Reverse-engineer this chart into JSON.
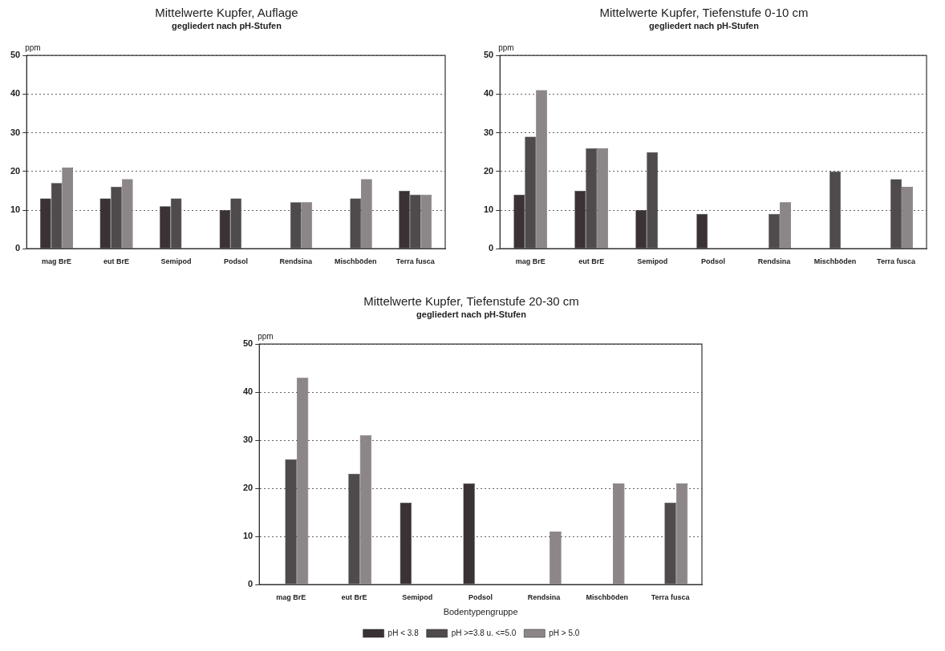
{
  "chart_data": [
    {
      "type": "bar",
      "title": "Mittelwerte Kupfer, Auflage",
      "subtitle": "gegliedert nach pH-Stufen",
      "ylabel": "ppm",
      "categories": [
        "mag BrE",
        "eut BrE",
        "Semipod",
        "Podsol",
        "Rendsina",
        "Mischböden",
        "Terra fusca"
      ],
      "series": [
        {
          "color": "#3a3234",
          "values": [
            13,
            13,
            11,
            10,
            null,
            null,
            15
          ]
        },
        {
          "color": "#4f4a4c",
          "values": [
            17,
            16,
            13,
            13,
            12,
            13,
            14
          ]
        },
        {
          "color": "#8c8688",
          "values": [
            21,
            18,
            null,
            null,
            12,
            18,
            14
          ]
        }
      ],
      "ylim": [
        0,
        50
      ],
      "yticks": [
        0,
        10,
        20,
        30,
        40,
        50
      ],
      "grid": "y",
      "legend": false
    },
    {
      "type": "bar",
      "title": "Mittelwerte Kupfer, Tiefenstufe 0-10 cm",
      "subtitle": "gegliedert nach pH-Stufen",
      "ylabel": "ppm",
      "categories": [
        "mag BrE",
        "eut BrE",
        "Semipod",
        "Podsol",
        "Rendsina",
        "Mischböden",
        "Terra fusca"
      ],
      "series": [
        {
          "color": "#3a3234",
          "values": [
            14,
            15,
            10,
            9,
            null,
            null,
            null
          ]
        },
        {
          "color": "#4f4a4c",
          "values": [
            29,
            26,
            25,
            null,
            9,
            20,
            18
          ]
        },
        {
          "color": "#8c8688",
          "values": [
            41,
            26,
            null,
            null,
            12,
            null,
            16
          ]
        }
      ],
      "ylim": [
        0,
        50
      ],
      "yticks": [
        0,
        10,
        20,
        30,
        40,
        50
      ],
      "grid": "y",
      "legend": false
    },
    {
      "type": "bar",
      "title": "Mittelwerte Kupfer, Tiefenstufe 20-30 cm",
      "subtitle": "gegliedert nach pH-Stufen",
      "ylabel": "ppm",
      "xlabel": "Bodentypengruppe",
      "categories": [
        "mag BrE",
        "eut BrE",
        "Semipod",
        "Podsol",
        "Rendsina",
        "Mischböden",
        "Terra fusca"
      ],
      "series": [
        {
          "name": "pH < 3.8",
          "color": "#3a3234",
          "values": [
            null,
            null,
            17,
            21,
            null,
            null,
            null
          ]
        },
        {
          "name": "pH >=3.8 u. <=5.0",
          "color": "#4f4a4c",
          "values": [
            26,
            23,
            null,
            null,
            null,
            null,
            17
          ]
        },
        {
          "name": "pH > 5.0",
          "color": "#8c8688",
          "values": [
            43,
            31,
            null,
            null,
            11,
            21,
            21
          ]
        }
      ],
      "ylim": [
        0,
        50
      ],
      "yticks": [
        0,
        10,
        20,
        30,
        40,
        50
      ],
      "grid": "y",
      "legend": "bottom"
    }
  ]
}
